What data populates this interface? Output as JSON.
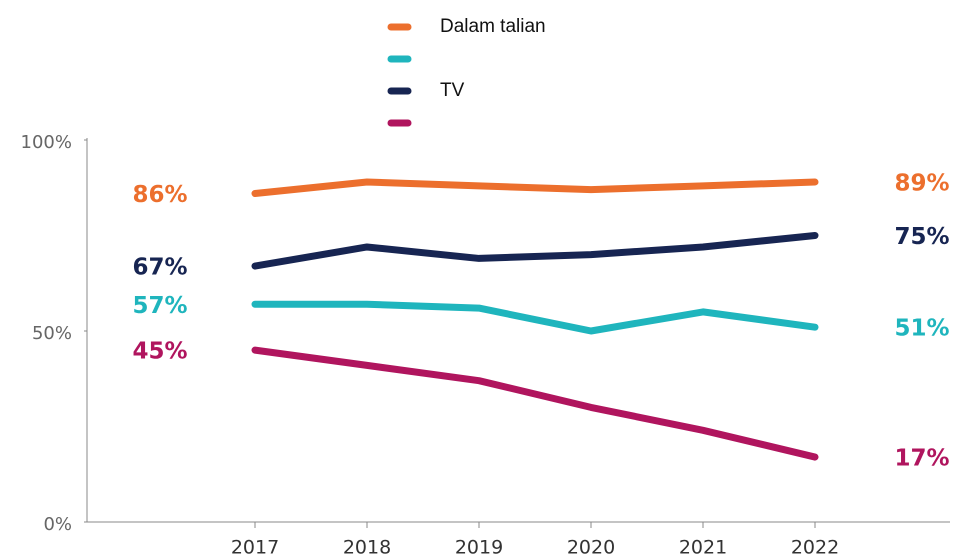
{
  "chart_data": {
    "type": "line",
    "categories": [
      "2017",
      "2018",
      "2019",
      "2020",
      "2021",
      "2022"
    ],
    "series": [
      {
        "name": "Dalam talian",
        "color": "#ec6f2d",
        "values": [
          86,
          89,
          88,
          87,
          88,
          89
        ],
        "value_labels": [
          "86%",
          null,
          null,
          null,
          null,
          "89%"
        ]
      },
      {
        "color": "#1fb5bd",
        "values": [
          57,
          57,
          56,
          50,
          55,
          51
        ],
        "value_labels": [
          "57%",
          null,
          null,
          null,
          null,
          "51%"
        ]
      },
      {
        "name": "TV",
        "color": "#172552",
        "values": [
          67,
          72,
          69,
          70,
          72,
          75
        ],
        "value_labels": [
          "67%",
          null,
          null,
          null,
          null,
          "75%"
        ]
      },
      {
        "color": "#b0155e",
        "values": [
          45,
          41,
          37,
          30,
          24,
          17
        ],
        "value_labels": [
          "45%",
          null,
          null,
          null,
          null,
          "17%"
        ]
      }
    ],
    "ylim": [
      0,
      100
    ],
    "yticks": [
      {
        "value": 0,
        "label": "0%"
      },
      {
        "value": 50,
        "label": "50%"
      },
      {
        "value": 100,
        "label": "100%"
      }
    ],
    "legend": "top"
  }
}
